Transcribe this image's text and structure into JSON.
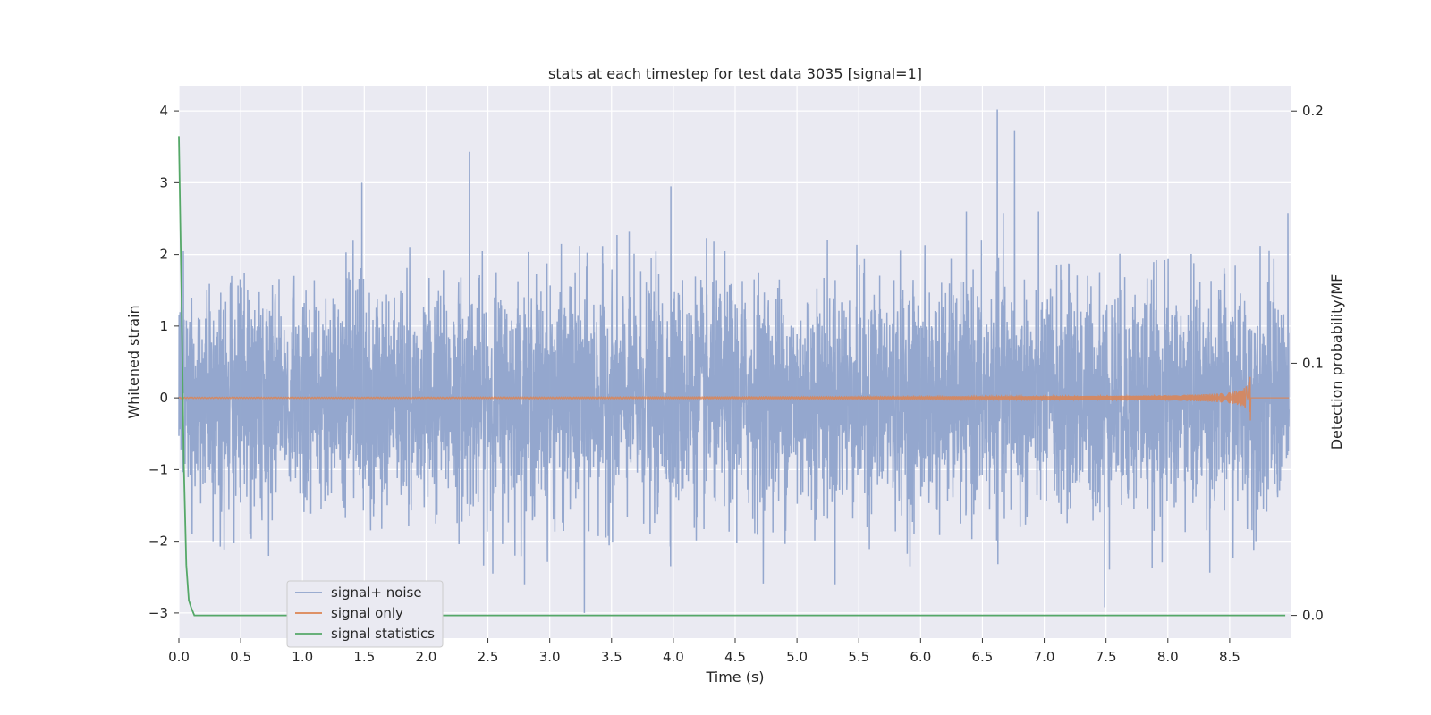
{
  "chart_data": {
    "type": "line",
    "title": "stats at each timestep for test data 3035 [signal=1]",
    "xlabel": "Time (s)",
    "ylabel": "Whitened strain",
    "y2label": "Detection probability/MF",
    "xlim": [
      0.0,
      9.0
    ],
    "ylim": [
      -3.35,
      4.35
    ],
    "y2lim": [
      -0.009,
      0.21
    ],
    "xticks": [
      "0.0",
      "0.5",
      "1.0",
      "1.5",
      "2.0",
      "2.5",
      "3.0",
      "3.5",
      "4.0",
      "4.5",
      "5.0",
      "5.5",
      "6.0",
      "6.5",
      "7.0",
      "7.5",
      "8.0",
      "8.5"
    ],
    "yticks": [
      "−3",
      "−2",
      "−1",
      "0",
      "1",
      "2",
      "3",
      "4"
    ],
    "y2ticks": [
      "0.0",
      "0.1",
      "0.2"
    ],
    "grid": true,
    "legend_position": "lower-left",
    "colors": {
      "background": "#eaeaf2",
      "grid": "#ffffff",
      "noise": "#8fa3cb",
      "signal": "#dd8452",
      "stats": "#55a868"
    },
    "series": [
      {
        "name": "signal+ noise",
        "axis": "left",
        "description": "noise-dominated strain, peaks",
        "peaks": [
          {
            "x": 1.48,
            "y": 3.0
          },
          {
            "x": 2.35,
            "y": 3.43
          },
          {
            "x": 3.28,
            "y": -3.0
          },
          {
            "x": 3.98,
            "y": 2.95
          },
          {
            "x": 6.62,
            "y": 4.02
          },
          {
            "x": 6.76,
            "y": 3.72
          },
          {
            "x": 7.49,
            "y": -2.92
          }
        ]
      },
      {
        "name": "signal only",
        "axis": "left",
        "chirp_peak_time": 8.67,
        "chirp_peak_amplitude": 0.35
      },
      {
        "name": "signal statistics",
        "axis": "right",
        "x": [
          0.0,
          0.02,
          0.04,
          0.06,
          0.08,
          0.1,
          0.125,
          8.95
        ],
        "y": [
          0.19,
          0.13,
          0.06,
          0.02,
          0.006,
          0.003,
          0.0,
          0.0
        ]
      }
    ]
  }
}
